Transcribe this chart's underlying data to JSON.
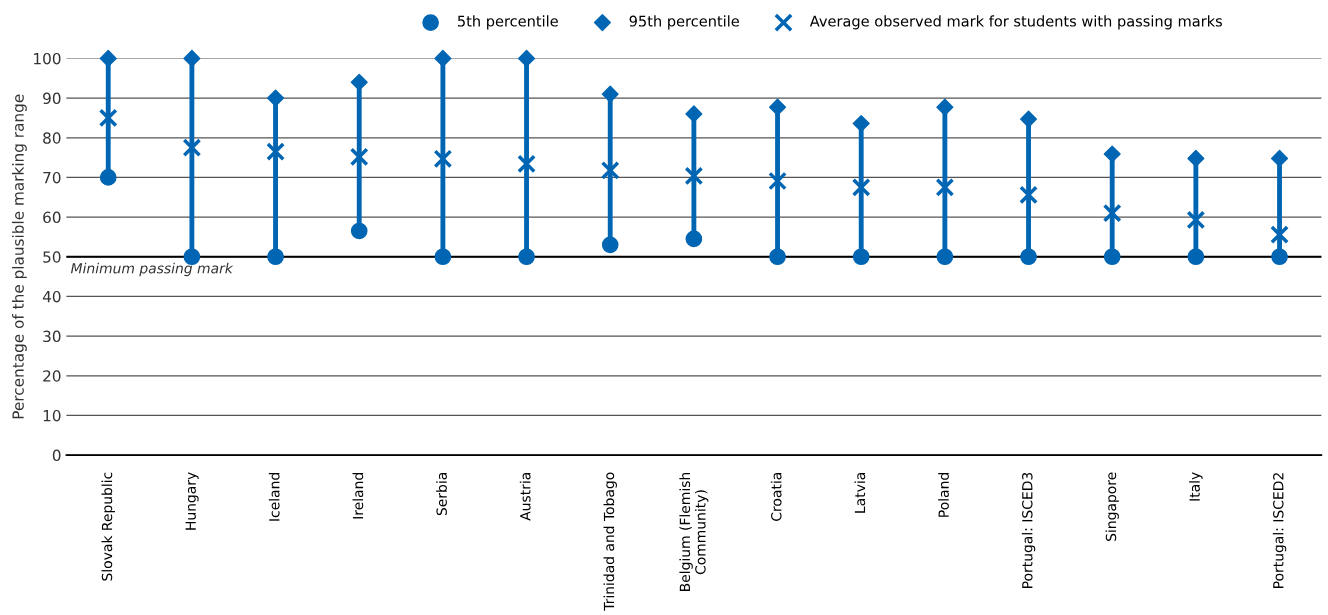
{
  "chart_data": {
    "type": "scatter",
    "ylabel": "Percentage of the plausible marking range",
    "categories": [
      "Slovak Republic",
      "Hungary",
      "Iceland",
      "Ireland",
      "Serbia",
      "Austria",
      "Trinidad and Tobago",
      "Belgium (Flemish\nCommunity)",
      "Croatia",
      "Latvia",
      "Poland",
      "Portugal: ISCED3",
      "Singapore",
      "Italy",
      "Portugal: ISCED2"
    ],
    "series": [
      {
        "name": "5th percentile",
        "color": "#0066b3",
        "marker": "circle",
        "values": [
          70,
          50,
          50,
          56.5,
          50,
          50,
          53,
          54.5,
          50,
          50,
          50,
          50,
          50,
          50,
          50
        ]
      },
      {
        "name": "95th percentile",
        "color": "#0066b3",
        "marker": "diamond",
        "values": [
          100,
          100,
          90,
          94,
          100,
          100,
          91,
          86,
          87.7,
          83.6,
          87.7,
          84.7,
          75.9,
          74.8,
          74.8
        ]
      },
      {
        "name": "Average observed mark for students with passing marks",
        "color": "#0066b3",
        "marker": "cross",
        "values": [
          85,
          77.5,
          76.5,
          75.2,
          74.7,
          73.4,
          71.8,
          70.4,
          69.1,
          67.5,
          67.5,
          65.6,
          61,
          59.3,
          55.6
        ]
      }
    ],
    "ylim": [
      0,
      100
    ],
    "yticks": [
      0,
      10,
      20,
      30,
      40,
      50,
      60,
      70,
      80,
      90,
      100
    ],
    "grid": "y",
    "legend": "top",
    "ref_lines": [
      {
        "axis": "y",
        "value": 50,
        "label": "Minimum passing mark",
        "color": "#000000"
      }
    ]
  }
}
